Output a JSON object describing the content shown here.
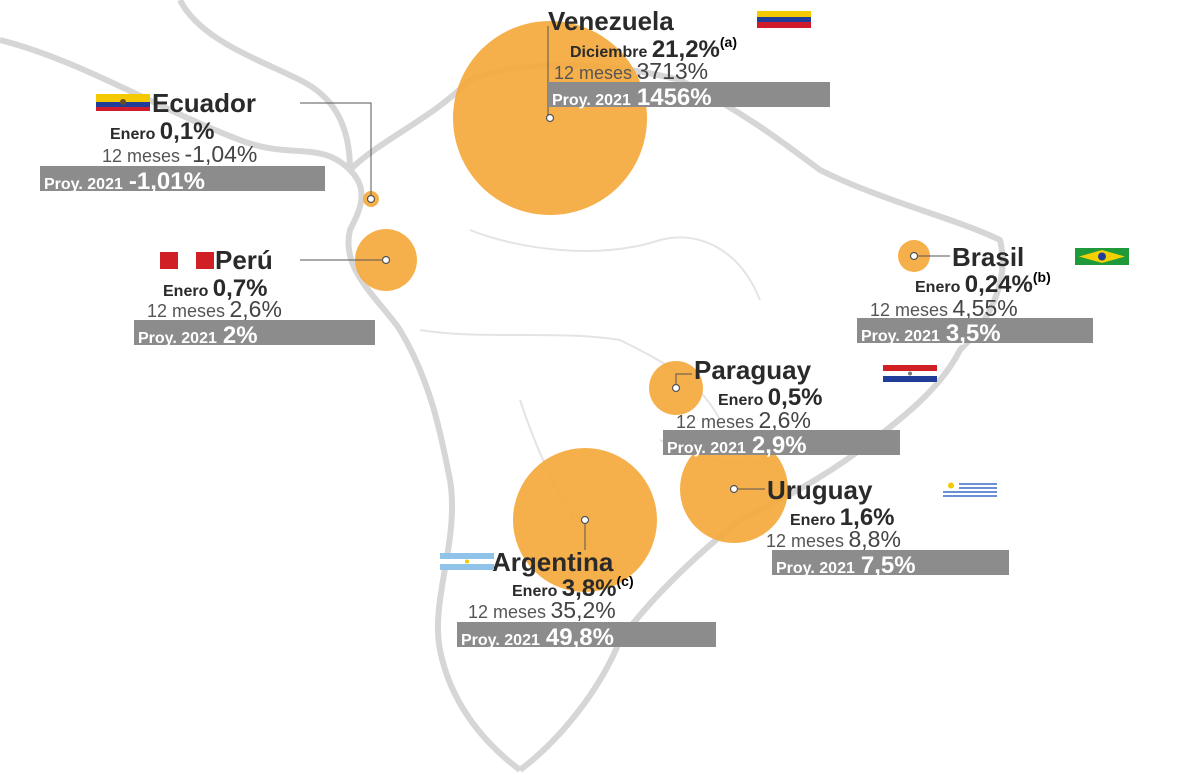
{
  "colors": {
    "bubble": "#f5a93c",
    "box": "#8c8c8c",
    "land": "#d9d9d9"
  },
  "countries": [
    {
      "id": "venezuela",
      "name": "Venezuela",
      "month_label": "Diciembre",
      "month_value": "21,2%",
      "note": "(a)",
      "yoy_label": "12 meses",
      "yoy_value": "3713%",
      "proj_label": "Proy. 2021",
      "proj_value": "1456%",
      "flag": "venezuela-flag-icon"
    },
    {
      "id": "ecuador",
      "name": "Ecuador",
      "month_label": "Enero",
      "month_value": "0,1%",
      "note": "",
      "yoy_label": "12 meses",
      "yoy_value": "-1,04%",
      "proj_label": "Proy. 2021",
      "proj_value": "-1,01%",
      "flag": "ecuador-flag-icon"
    },
    {
      "id": "peru",
      "name": "Perú",
      "month_label": "Enero",
      "month_value": "0,7%",
      "note": "",
      "yoy_label": "12 meses",
      "yoy_value": "2,6%",
      "proj_label": "Proy. 2021",
      "proj_value": "2%",
      "flag": "peru-flag-icon"
    },
    {
      "id": "brasil",
      "name": "Brasil",
      "month_label": "Enero",
      "month_value": "0,24%",
      "note": "(b)",
      "yoy_label": "12 meses",
      "yoy_value": "4,55%",
      "proj_label": "Proy. 2021",
      "proj_value": "3,5%",
      "flag": "brasil-flag-icon"
    },
    {
      "id": "paraguay",
      "name": "Paraguay",
      "month_label": "Enero",
      "month_value": "0,5%",
      "note": "",
      "yoy_label": "12 meses",
      "yoy_value": "2,6%",
      "proj_label": "Proy. 2021",
      "proj_value": "2,9%",
      "flag": "paraguay-flag-icon"
    },
    {
      "id": "uruguay",
      "name": "Uruguay",
      "month_label": "Enero",
      "month_value": "1,6%",
      "note": "",
      "yoy_label": "12 meses",
      "yoy_value": "8,8%",
      "proj_label": "Proy. 2021",
      "proj_value": "7,5%",
      "flag": "uruguay-flag-icon"
    },
    {
      "id": "argentina",
      "name": "Argentina",
      "month_label": "Enero",
      "month_value": "3,8%",
      "note": "(c)",
      "yoy_label": "12 meses",
      "yoy_value": "35,2%",
      "proj_label": "Proy. 2021",
      "proj_value": "49,8%",
      "flag": "argentina-flag-icon"
    }
  ]
}
